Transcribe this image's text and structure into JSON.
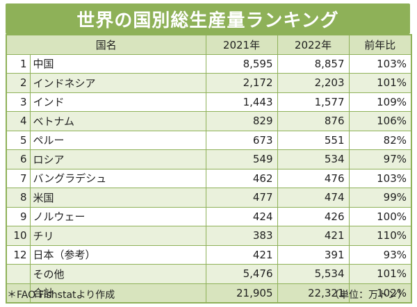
{
  "title": "世界の国別総生産量ランキング",
  "headers": {
    "country": "国名",
    "y2021": "2021年",
    "y2022": "2022年",
    "ratio": "前年比"
  },
  "rows": [
    {
      "rank": "1",
      "name": "中国",
      "y2021": "8,595",
      "y2022": "8,857",
      "ratio": "103%"
    },
    {
      "rank": "2",
      "name": "インドネシア",
      "y2021": "2,172",
      "y2022": "2,203",
      "ratio": "101%"
    },
    {
      "rank": "3",
      "name": "インド",
      "y2021": "1,443",
      "y2022": "1,577",
      "ratio": "109%"
    },
    {
      "rank": "4",
      "name": "ベトナム",
      "y2021": "829",
      "y2022": "876",
      "ratio": "106%"
    },
    {
      "rank": "5",
      "name": "ペルー",
      "y2021": "673",
      "y2022": "551",
      "ratio": "82%"
    },
    {
      "rank": "6",
      "name": "ロシア",
      "y2021": "549",
      "y2022": "534",
      "ratio": "97%"
    },
    {
      "rank": "7",
      "name": "バングラデシュ",
      "y2021": "462",
      "y2022": "476",
      "ratio": "103%"
    },
    {
      "rank": "8",
      "name": "米国",
      "y2021": "477",
      "y2022": "474",
      "ratio": "99%"
    },
    {
      "rank": "9",
      "name": "ノルウェー",
      "y2021": "424",
      "y2022": "426",
      "ratio": "100%"
    },
    {
      "rank": "10",
      "name": "チリ",
      "y2021": "383",
      "y2022": "421",
      "ratio": "110%"
    },
    {
      "rank": "12",
      "name": "日本（参考）",
      "y2021": "421",
      "y2022": "391",
      "ratio": "93%"
    },
    {
      "rank": "",
      "name": "その他",
      "y2021": "5,476",
      "y2022": "5,534",
      "ratio": "101%"
    },
    {
      "rank": "",
      "name": "合計",
      "y2021": "21,905",
      "y2022": "22,321",
      "ratio": "102%"
    }
  ],
  "footnote": "＊FAO Fishstatより作成",
  "unit": "（単位：万トン）"
}
